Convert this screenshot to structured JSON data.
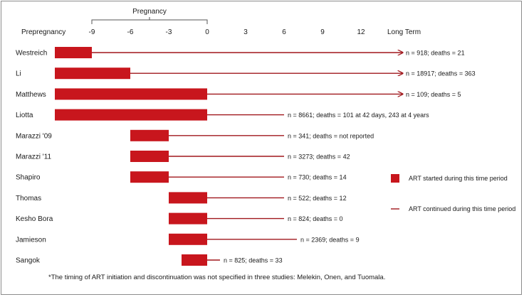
{
  "chart_data": {
    "type": "bar",
    "title": "",
    "xlabel": "",
    "ylabel": "",
    "axis": {
      "bracket_label": "Pregnancy",
      "bracket_range": [
        -9,
        0
      ],
      "left_label": "Prepregnancy",
      "right_label": "Long Term",
      "ticks": [
        -9,
        -6,
        -3,
        0,
        3,
        6,
        9,
        12
      ],
      "xlim": [
        -9,
        15
      ]
    },
    "colors": {
      "bar": "#c8161d",
      "line": "#a0171c",
      "text": "#1a1a1a"
    },
    "studies": [
      {
        "name": "Westreich",
        "bar_start": -12,
        "bar_end": -9,
        "line_end": "long-term",
        "arrow": true,
        "annotation": "n = 918; deaths = 21"
      },
      {
        "name": "Li",
        "bar_start": -12,
        "bar_end": -6,
        "line_end": "long-term",
        "arrow": true,
        "annotation": "n = 18917; deaths = 363"
      },
      {
        "name": "Matthews",
        "bar_start": -12,
        "bar_end": 0,
        "line_end": "long-term",
        "arrow": true,
        "annotation": "n = 109; deaths = 5"
      },
      {
        "name": "Liotta",
        "bar_start": -12,
        "bar_end": 0,
        "line_end": 6,
        "arrow": false,
        "annotation": "n = 8661; deaths = 101 at 42 days, 243 at 4 years"
      },
      {
        "name": "Marazzi '09",
        "bar_start": -6,
        "bar_end": -3,
        "line_end": 6,
        "arrow": false,
        "annotation": "n = 341; deaths = not reported"
      },
      {
        "name": "Marazzi '11",
        "bar_start": -6,
        "bar_end": -3,
        "line_end": 6,
        "arrow": false,
        "annotation": "n = 3273; deaths = 42"
      },
      {
        "name": "Shapiro",
        "bar_start": -6,
        "bar_end": -3,
        "line_end": 6,
        "arrow": false,
        "annotation": "n = 730; deaths = 14"
      },
      {
        "name": "Thomas",
        "bar_start": -3,
        "bar_end": 0,
        "line_end": 6,
        "arrow": false,
        "annotation": "n = 522; deaths = 12"
      },
      {
        "name": "Kesho Bora",
        "bar_start": -3,
        "bar_end": 0,
        "line_end": 6,
        "arrow": false,
        "annotation": "n = 824; deaths = 0"
      },
      {
        "name": "Jamieson",
        "bar_start": -3,
        "bar_end": 0,
        "line_end": 7,
        "arrow": false,
        "annotation": "n = 2369; deaths = 9"
      },
      {
        "name": "Sangok",
        "bar_start": -2,
        "bar_end": 0,
        "line_end": 1,
        "arrow": false,
        "annotation": "n = 825; deaths = 33"
      }
    ],
    "legend": {
      "position": "right",
      "items": [
        {
          "kind": "bar",
          "label": "ART started during this time period"
        },
        {
          "kind": "line",
          "label": "ART continued during this time period"
        }
      ]
    },
    "footnote": "*The timing of ART initiation and discontinuation was not specified in three studies: Melekin, Onen, and Tuomala."
  }
}
